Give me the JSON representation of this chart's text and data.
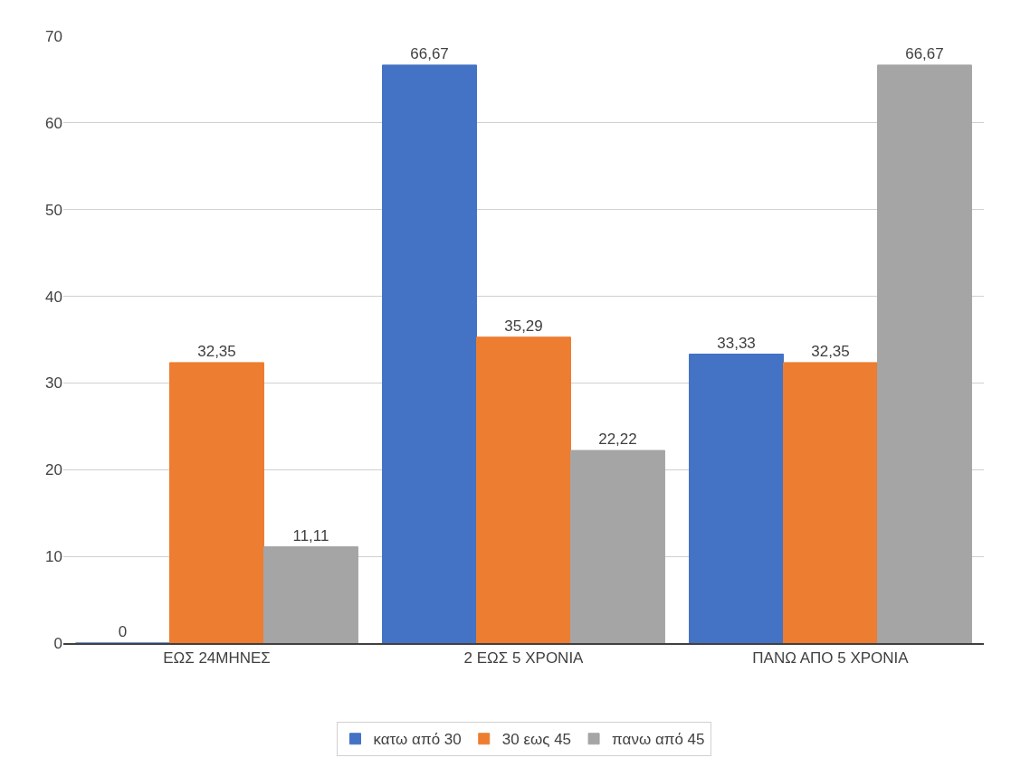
{
  "chart_data": {
    "type": "bar",
    "categories": [
      "ΕΩΣ 24ΜΗΝΕΣ",
      "2 ΕΩΣ 5 ΧΡΟΝΙΑ",
      "ΠΑΝΩ ΑΠΟ 5 ΧΡΟΝΙΑ"
    ],
    "series": [
      {
        "name": "κατω από 30",
        "color": "#4472c4",
        "values": [
          0,
          66.67,
          33.33
        ],
        "value_labels": [
          "0",
          "66,67",
          "33,33"
        ]
      },
      {
        "name": "30 εως 45",
        "color": "#ed7d31",
        "values": [
          32.35,
          35.29,
          32.35
        ],
        "value_labels": [
          "32,35",
          "35,29",
          "32,35"
        ]
      },
      {
        "name": "πανω από 45",
        "color": "#a5a5a5",
        "values": [
          11.11,
          22.22,
          66.67
        ],
        "value_labels": [
          "11,11",
          "22,22",
          "66,67"
        ]
      }
    ],
    "ylim": [
      0,
      70
    ],
    "yticks": [
      0,
      10,
      20,
      30,
      40,
      50,
      60,
      70
    ],
    "grid": "y",
    "legend": "bottom"
  }
}
